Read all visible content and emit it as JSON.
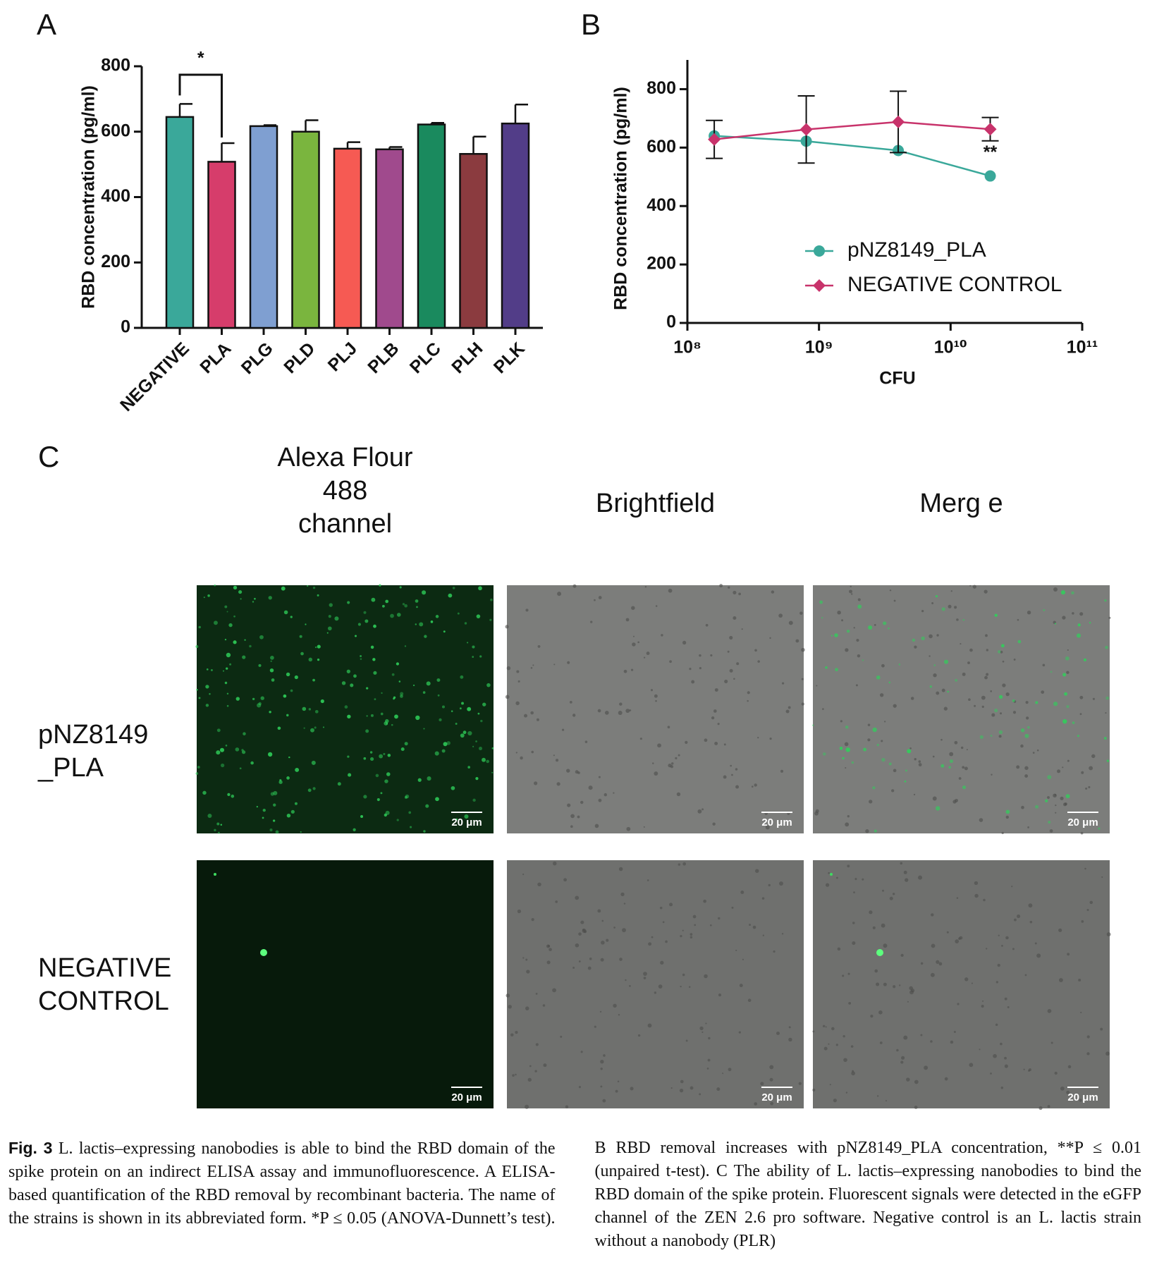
{
  "chart_data": [
    {
      "type": "bar",
      "panel": "A",
      "y_label": "RBD concentration (pg/ml)",
      "categories": [
        "NEGATIVE",
        "PLA",
        "PLG",
        "PLD",
        "PLJ",
        "PLB",
        "PLC",
        "PLH",
        "PLK"
      ],
      "values": [
        645,
        508,
        617,
        600,
        548,
        546,
        622,
        532,
        625
      ],
      "errors": [
        40,
        57,
        3,
        35,
        20,
        7,
        5,
        53,
        58
      ],
      "colors": [
        "#3aa89a",
        "#d63d6b",
        "#7f9fd1",
        "#7ab53e",
        "#f65a53",
        "#a04a8d",
        "#1a8a5e",
        "#8b3b3f",
        "#523d88"
      ],
      "ylim": [
        0,
        800
      ],
      "yticks": [
        0,
        200,
        400,
        600,
        800
      ],
      "significance": "*"
    },
    {
      "type": "line",
      "panel": "B",
      "y_label": "RBD concentration (pg/ml)",
      "x_label": "CFU",
      "xscale": "log",
      "x": [
        160000000,
        800000000,
        4000000000,
        20000000000
      ],
      "series": [
        {
          "name": "pNZ8149_PLA",
          "color": "#3aa89a",
          "marker": "circle",
          "values": [
            640,
            622,
            590,
            503
          ]
        },
        {
          "name": "NEGATIVE CONTROL",
          "color": "#c8336b",
          "marker": "diamond",
          "values": [
            628,
            662,
            688,
            663
          ],
          "errors": [
            65,
            115,
            105,
            40
          ]
        }
      ],
      "xlim": [
        100000000,
        100000000000
      ],
      "xticks": [
        {
          "value": 100000000,
          "label": "10⁸"
        },
        {
          "value": 1000000000,
          "label": "10⁹"
        },
        {
          "value": 10000000000,
          "label": "10¹⁰"
        },
        {
          "value": 100000000000,
          "label": "10¹¹"
        }
      ],
      "ylim": [
        0,
        900
      ],
      "yticks": [
        0,
        200,
        400,
        600,
        800
      ],
      "annotation": "**"
    }
  ],
  "panel_c": {
    "panel": "C",
    "columns": [
      [
        "Alexa Flour",
        "488",
        "channel"
      ],
      [
        "Brightfield"
      ],
      [
        "Merg e"
      ]
    ],
    "rows": [
      [
        "pNZ8149",
        "_PLA"
      ],
      [
        "NEGATIVE",
        "CONTROL"
      ]
    ],
    "scale_bar": "20 μm"
  },
  "caption": {
    "label": "Fig. 3",
    "text": "L. lactis–expressing nanobodies is able to bind the RBD domain of the spike protein on an indirect ELISA assay and immunofluorescence. A ELISA-based quantification of the RBD removal by recombinant bacteria. The name of the strains is shown in its abbreviated form. *P ≤ 0.05 (ANOVA-Dunnett’s test). B RBD removal increases with pNZ8149_PLA concentration, **P ≤ 0.01 (unpaired t-test). C The ability of L. lactis–expressing nanobodies to bind the RBD domain of the spike protein. Fluorescent signals were detected in the eGFP channel of the ZEN 2.6 pro software. Negative control is an L. lactis strain without a nanobody (PLR)"
  }
}
